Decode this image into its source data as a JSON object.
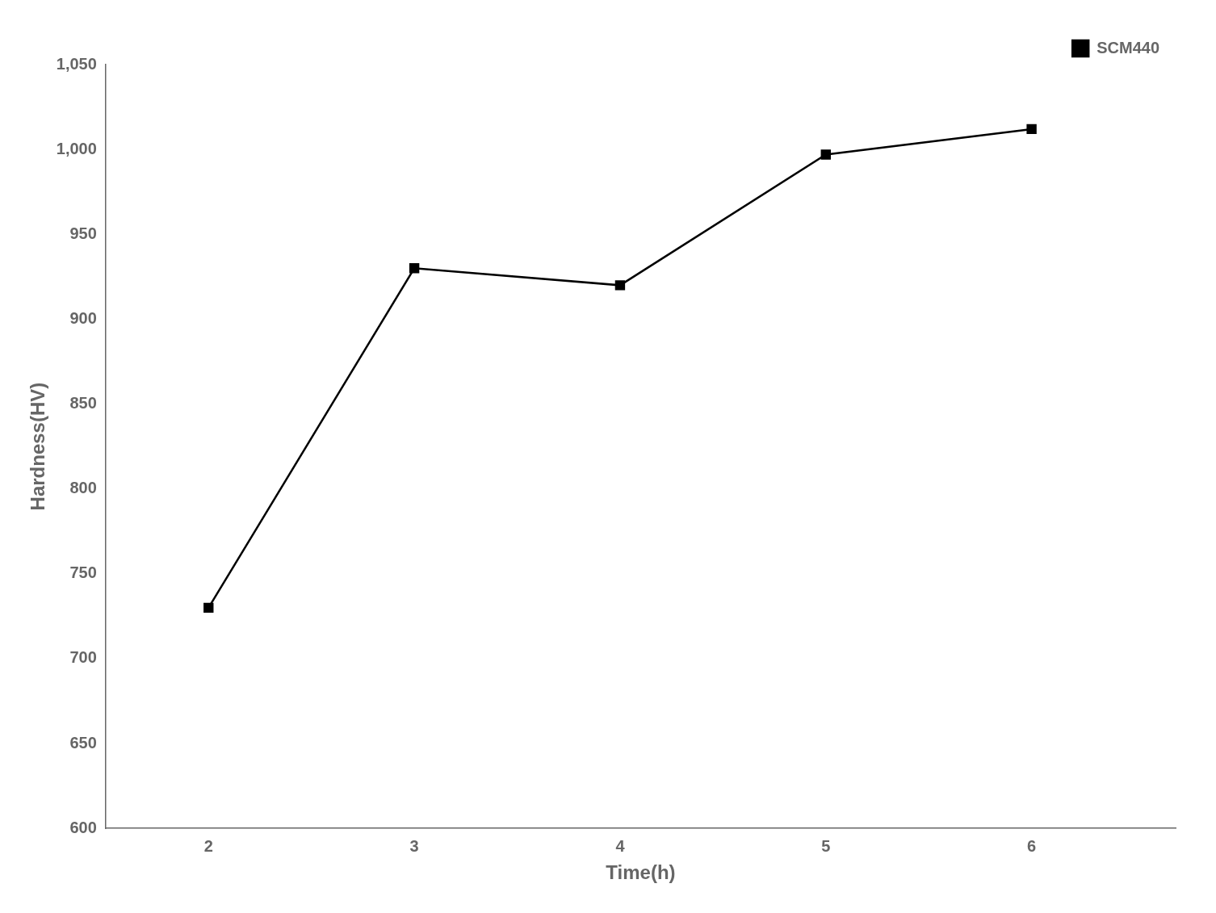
{
  "chart_data": {
    "type": "line",
    "x": [
      2,
      3,
      4,
      5,
      6
    ],
    "series": [
      {
        "name": "SCM440",
        "color": "#000000",
        "marker": "square",
        "values": [
          730,
          930,
          920,
          997,
          1012
        ]
      }
    ],
    "xlabel": "Time(h)",
    "ylabel": "Hardness(HV)",
    "xlim": [
      1.5,
      6.7
    ],
    "xticks": [
      2,
      3,
      4,
      5,
      6
    ],
    "ylim": [
      600,
      1050
    ],
    "yticks": [
      600,
      650,
      700,
      750,
      800,
      850,
      900,
      950,
      1000,
      1050
    ],
    "grid": false,
    "legend": "upper right"
  }
}
